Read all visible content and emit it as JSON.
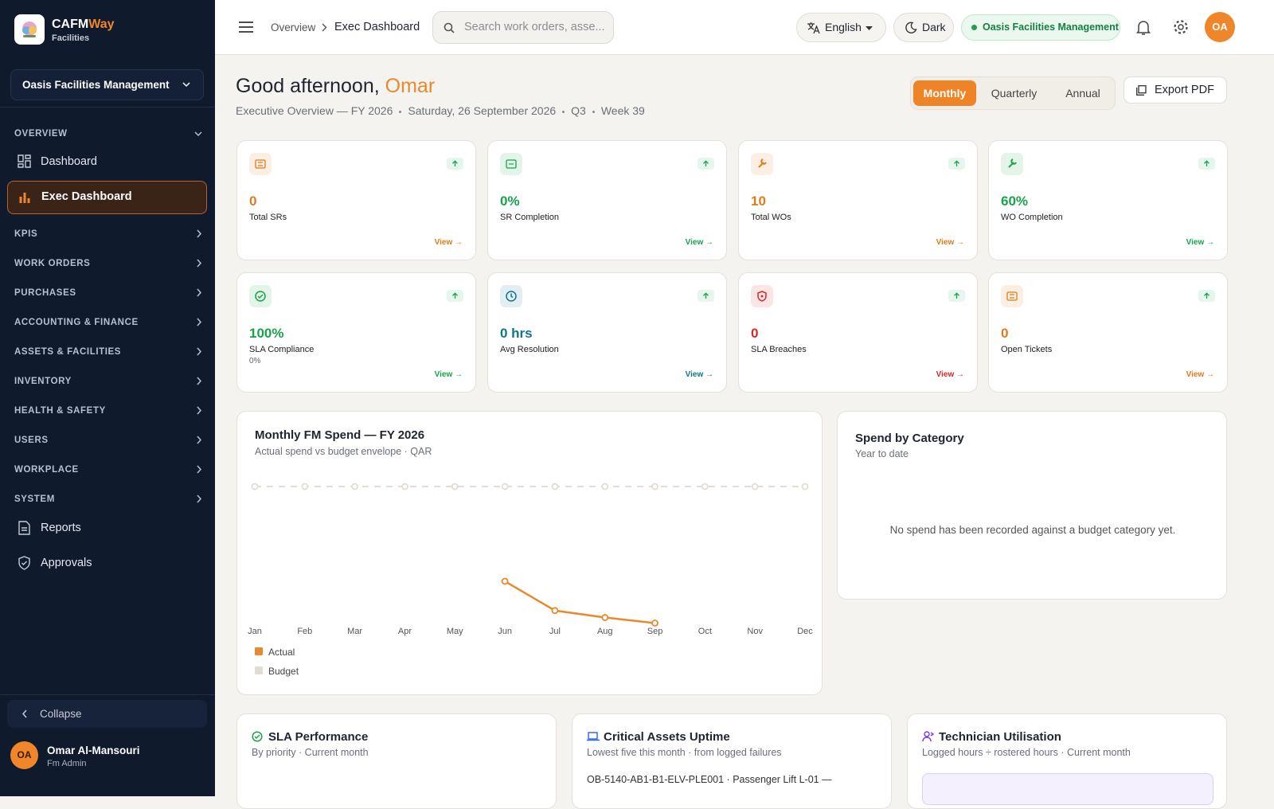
{
  "brand": {
    "name_a": "CAFM",
    "name_b": "Way",
    "sub": "Facilities"
  },
  "sidebar": {
    "org": "Oasis Facilities Management",
    "overview": {
      "label": "OVERVIEW",
      "items": [
        "Dashboard",
        "Exec Dashboard"
      ]
    },
    "sections": [
      "KPIS",
      "WORK ORDERS",
      "PURCHASES",
      "ACCOUNTING & FINANCE",
      "ASSETS & FACILITIES",
      "INVENTORY",
      "HEALTH & SAFETY",
      "USERS",
      "WORKPLACE",
      "SYSTEM"
    ],
    "links": [
      "Reports",
      "Approvals"
    ],
    "collapse": "Collapse",
    "user": {
      "initials": "OA",
      "name": "Omar Al-Mansouri",
      "role": "Fm Admin"
    }
  },
  "topbar": {
    "breadcrumb": [
      "Overview",
      "Exec Dashboard"
    ],
    "search": "Search work orders, asse...",
    "language": "English",
    "theme": "Dark",
    "org": "Oasis Facilities Management",
    "avatar": "OA"
  },
  "header": {
    "greeting": "Good afternoon,",
    "name": "Omar",
    "meta": [
      "Executive Overview — FY 2026",
      "Saturday, 26 September 2026",
      "Q3",
      "Week 39"
    ],
    "periods": [
      "Monthly",
      "Quarterly",
      "Annual"
    ],
    "export": "Export PDF"
  },
  "kpis": [
    {
      "value": "0",
      "label": "Total SRs",
      "link": "View →",
      "color": "#e07b1a"
    },
    {
      "value": "0%",
      "label": "SR Completion",
      "link": "View →",
      "color": "#16a34a"
    },
    {
      "value": "10",
      "label": "Total WOs",
      "link": "View →",
      "color": "#e07b1a"
    },
    {
      "value": "60%",
      "label": "WO Completion",
      "link": "View →",
      "color": "#16a34a"
    },
    {
      "value": "100%",
      "label": "SLA Compliance",
      "sub": "0%",
      "link": "View →",
      "color": "#16a34a"
    },
    {
      "value": "0 hrs",
      "label": "Avg Resolution",
      "link": "View →",
      "color": "#0e7490"
    },
    {
      "value": "0",
      "label": "SLA Breaches",
      "link": "View →",
      "color": "#dc2626"
    },
    {
      "value": "0",
      "label": "Open Tickets",
      "link": "View →",
      "color": "#e07b1a"
    }
  ],
  "chart_data": {
    "type": "line",
    "title": "Monthly FM Spend — FY 2026",
    "subtitle": "Actual spend vs budget envelope · QAR",
    "categories": [
      "Jan",
      "Feb",
      "Mar",
      "Apr",
      "May",
      "Jun",
      "Jul",
      "Aug",
      "Sep",
      "Oct",
      "Nov",
      "Dec"
    ],
    "series": [
      {
        "name": "Actual",
        "color": "#e8892c",
        "values": [
          null,
          null,
          null,
          null,
          null,
          32,
          11,
          6,
          2,
          null,
          null,
          null
        ]
      },
      {
        "name": "Budget",
        "color": "#e2ddd3",
        "dashed": true,
        "values": [
          100,
          100,
          100,
          100,
          100,
          100,
          100,
          100,
          100,
          100,
          100,
          100
        ]
      }
    ],
    "ylim": [
      0,
      100
    ],
    "legend": "bottom-left"
  },
  "category": {
    "title": "Spend by Category",
    "subtitle": "Year to date",
    "empty": "No spend has been recorded against a budget category yet."
  },
  "bottom": [
    {
      "title": "SLA Performance",
      "subtitle": "By priority · Current month"
    },
    {
      "title": "Critical Assets Uptime",
      "subtitle": "Lowest five this month · from logged failures",
      "row": "OB-5140-AB1-B1-ELV-PLE001 · Passenger Lift L-01 —"
    },
    {
      "title": "Technician Utilisation",
      "subtitle": "Logged hours ÷ rostered hours · Current month"
    }
  ]
}
